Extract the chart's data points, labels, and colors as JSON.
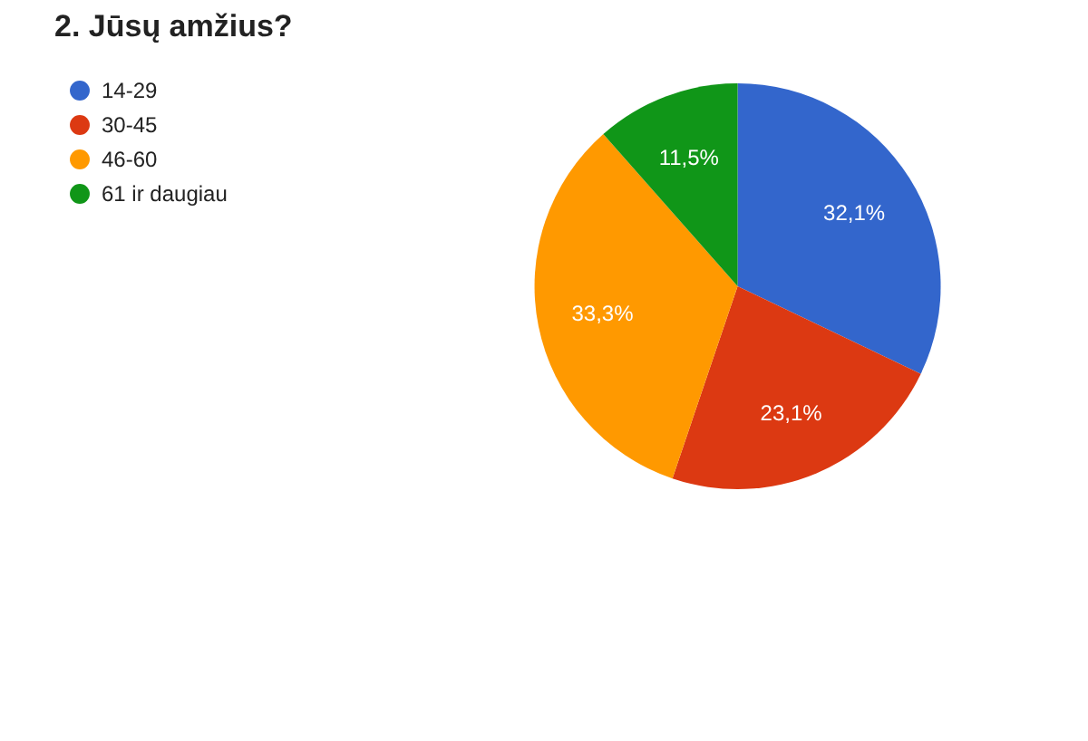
{
  "chart_data": {
    "type": "pie",
    "title": "2. Jūsų amžius?",
    "categories": [
      "14-29",
      "30-45",
      "46-60",
      "61 ir daugiau"
    ],
    "values": [
      32.1,
      23.1,
      33.3,
      11.5
    ],
    "colors": [
      "#3366cc",
      "#dc3912",
      "#ff9900",
      "#109618"
    ],
    "value_labels": [
      "32,1%",
      "23,1%",
      "33,3%",
      "11,5%"
    ],
    "legend": "top left"
  }
}
